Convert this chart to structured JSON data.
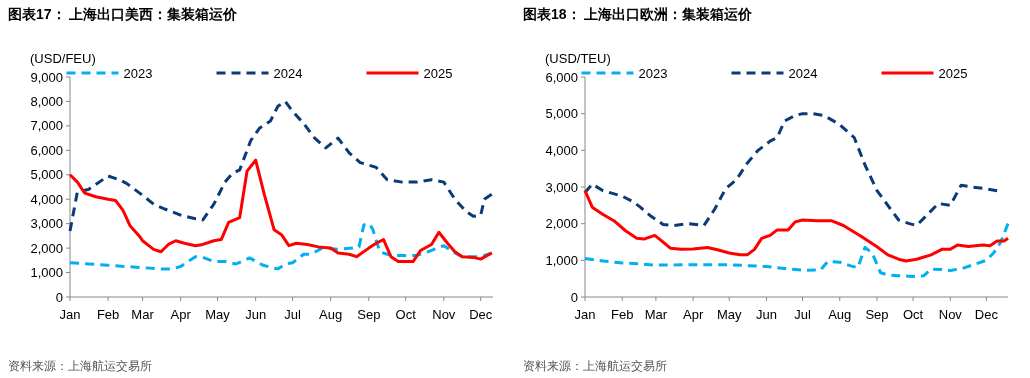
{
  "chart_data": [
    {
      "type": "line",
      "title": "图表17： 上海出口美西：集装箱运价",
      "ylabel": "(USD/FEU)",
      "annotations": [
        "资料来源：上海航运交易所"
      ],
      "xlim": [
        "--01-01",
        "--12-11"
      ],
      "xticks": [
        {
          "value": "--01-01",
          "label": "Jan"
        },
        {
          "value": "--02-01",
          "label": "Feb"
        },
        {
          "value": "--03-01",
          "label": "Mar"
        },
        {
          "value": "--04-01",
          "label": "Apr"
        },
        {
          "value": "--05-01",
          "label": "May"
        },
        {
          "value": "--06-01",
          "label": "Jun"
        },
        {
          "value": "--07-01",
          "label": "Jul"
        },
        {
          "value": "--08-01",
          "label": "Aug"
        },
        {
          "value": "--09-01",
          "label": "Sep"
        },
        {
          "value": "--10-01",
          "label": "Oct"
        },
        {
          "value": "--11-01",
          "label": "Nov"
        },
        {
          "value": "--12-01",
          "label": "Dec"
        }
      ],
      "ylim": [
        0,
        9000
      ],
      "yticks": [
        {
          "value": 0,
          "label": "0"
        },
        {
          "value": 1000,
          "label": "1,000"
        },
        {
          "value": 2000,
          "label": "2,000"
        },
        {
          "value": 3000,
          "label": "3,000"
        },
        {
          "value": 4000,
          "label": "4,000"
        },
        {
          "value": 5000,
          "label": "5,000"
        },
        {
          "value": 6000,
          "label": "6,000"
        },
        {
          "value": 7000,
          "label": "7,000"
        },
        {
          "value": 8000,
          "label": "8,000"
        },
        {
          "value": 9000,
          "label": "9,000"
        }
      ],
      "legend": "top",
      "grid": false,
      "marker": "none",
      "series": [
        {
          "name": "2023",
          "color": "#00b0f0",
          "line_style": "dashed",
          "x": [
            "--01-01",
            "--02-01",
            "--03-01",
            "--03-16",
            "--03-25",
            "--04-01",
            "--04-07",
            "--04-13",
            "--04-19",
            "--04-28",
            "--05-07",
            "--05-16",
            "--05-27",
            "--06-07",
            "--06-16",
            "--06-19",
            "--06-25",
            "--07-01",
            "--07-10",
            "--07-16",
            "--07-25",
            "--08-07",
            "--08-19",
            "--08-24",
            "--08-28",
            "--09-01",
            "--09-04",
            "--09-10",
            "--09-16",
            "--09-25",
            "--10-10",
            "--10-19",
            "--11-01",
            "--11-10",
            "--11-16",
            "--12-01",
            "--12-10"
          ],
          "values": [
            1400,
            1300,
            1200,
            1150,
            1150,
            1250,
            1450,
            1650,
            1620,
            1450,
            1450,
            1350,
            1600,
            1300,
            1180,
            1150,
            1350,
            1400,
            1750,
            1750,
            2000,
            1950,
            2000,
            2050,
            2950,
            3000,
            2800,
            1850,
            1750,
            1700,
            1700,
            1850,
            2100,
            1800,
            1650,
            1650,
            1800
          ]
        },
        {
          "name": "2024",
          "color": "#0a3a78",
          "line_style": "dashed",
          "x": [
            "--01-01",
            "--01-07",
            "--01-16",
            "--02-01",
            "--02-10",
            "--02-16",
            "--02-28",
            "--03-10",
            "--03-19",
            "--04-01",
            "--04-13",
            "--04-19",
            "--04-28",
            "--05-07",
            "--05-13",
            "--05-19",
            "--05-28",
            "--06-04",
            "--06-13",
            "--06-19",
            "--06-25",
            "--07-01",
            "--07-10",
            "--07-19",
            "--07-28",
            "--08-07",
            "--08-16",
            "--08-25",
            "--09-07",
            "--09-16",
            "--09-28",
            "--10-10",
            "--10-22",
            "--11-01",
            "--11-10",
            "--11-19",
            "--11-25",
            "--12-01",
            "--12-04",
            "--12-10"
          ],
          "values": [
            2700,
            4300,
            4400,
            4950,
            4800,
            4650,
            4200,
            3800,
            3600,
            3350,
            3200,
            3150,
            3800,
            4700,
            5050,
            5200,
            6400,
            6900,
            7200,
            7800,
            8000,
            7600,
            7100,
            6500,
            6100,
            6500,
            5900,
            5500,
            5300,
            4800,
            4700,
            4700,
            4800,
            4700,
            4000,
            3500,
            3300,
            3350,
            4000,
            4200
          ]
        },
        {
          "name": "2025",
          "color": "#ff0000",
          "line_style": "solid",
          "x": [
            "--01-01",
            "--01-07",
            "--01-13",
            "--01-22",
            "--02-01",
            "--02-07",
            "--02-13",
            "--02-19",
            "--02-27",
            "--03-01",
            "--03-10",
            "--03-16",
            "--03-22",
            "--03-28",
            "--04-04",
            "--04-13",
            "--04-19",
            "--04-28",
            "--05-04",
            "--05-10",
            "--05-19",
            "--05-25",
            "--06-01",
            "--06-08",
            "--06-16",
            "--06-22",
            "--06-28",
            "--07-04",
            "--07-13",
            "--07-22",
            "--08-01",
            "--08-07",
            "--08-16",
            "--08-22",
            "--09-01",
            "--09-07",
            "--09-13",
            "--09-19",
            "--09-25",
            "--10-01",
            "--10-07",
            "--10-13",
            "--10-22",
            "--10-28",
            "--11-04",
            "--11-10",
            "--11-16",
            "--11-25",
            "--12-01",
            "--12-10"
          ],
          "values": [
            5000,
            4700,
            4250,
            4100,
            4000,
            3950,
            3550,
            2900,
            2450,
            2300,
            1950,
            1850,
            2150,
            2300,
            2200,
            2100,
            2150,
            2300,
            2350,
            3050,
            3250,
            5150,
            5600,
            4200,
            2750,
            2550,
            2100,
            2200,
            2150,
            2050,
            2000,
            1800,
            1750,
            1650,
            2000,
            2200,
            2350,
            1650,
            1450,
            1450,
            1450,
            1900,
            2150,
            2650,
            2200,
            1850,
            1650,
            1620,
            1550,
            1800
          ]
        }
      ]
    },
    {
      "type": "line",
      "title": "图表18： 上海出口欧洲：集装箱运价",
      "ylabel": "(USD/TEU)",
      "annotations": [
        "资料来源：上海航运交易所"
      ],
      "xlim": [
        "--01-01",
        "--12-19"
      ],
      "xticks": [
        {
          "value": "--01-01",
          "label": "Jan"
        },
        {
          "value": "--02-01",
          "label": "Feb"
        },
        {
          "value": "--03-01",
          "label": "Mar"
        },
        {
          "value": "--04-01",
          "label": "Apr"
        },
        {
          "value": "--05-01",
          "label": "May"
        },
        {
          "value": "--06-01",
          "label": "Jun"
        },
        {
          "value": "--07-01",
          "label": "Jul"
        },
        {
          "value": "--08-01",
          "label": "Aug"
        },
        {
          "value": "--09-01",
          "label": "Sep"
        },
        {
          "value": "--10-01",
          "label": "Oct"
        },
        {
          "value": "--11-01",
          "label": "Nov"
        },
        {
          "value": "--12-01",
          "label": "Dec"
        }
      ],
      "ylim": [
        0,
        6000
      ],
      "yticks": [
        {
          "value": 0,
          "label": "0"
        },
        {
          "value": 1000,
          "label": "1,000"
        },
        {
          "value": 2000,
          "label": "2,000"
        },
        {
          "value": 3000,
          "label": "3,000"
        },
        {
          "value": 4000,
          "label": "4,000"
        },
        {
          "value": 5000,
          "label": "5,000"
        },
        {
          "value": 6000,
          "label": "6,000"
        }
      ],
      "legend": "top",
      "grid": false,
      "marker": "none",
      "series": [
        {
          "name": "2023",
          "color": "#00b0f0",
          "line_style": "dashed",
          "x": [
            "--01-01",
            "--01-16",
            "--02-01",
            "--02-16",
            "--03-01",
            "--04-01",
            "--05-01",
            "--06-01",
            "--06-16",
            "--07-01",
            "--07-16",
            "--07-22",
            "--08-01",
            "--08-10",
            "--08-16",
            "--08-22",
            "--08-28",
            "--09-04",
            "--09-10",
            "--09-19",
            "--10-01",
            "--10-10",
            "--10-16",
            "--10-25",
            "--11-01",
            "--11-13",
            "--11-22",
            "--12-01",
            "--12-07",
            "--12-13",
            "--12-19"
          ],
          "values": [
            1050,
            980,
            930,
            900,
            870,
            880,
            880,
            830,
            780,
            730,
            740,
            970,
            950,
            850,
            800,
            1350,
            1200,
            660,
            600,
            580,
            560,
            580,
            760,
            750,
            720,
            800,
            900,
            1000,
            1200,
            1500,
            2000
          ]
        },
        {
          "name": "2024",
          "color": "#0a3a78",
          "line_style": "dashed",
          "x": [
            "--01-01",
            "--01-07",
            "--01-16",
            "--02-01",
            "--02-10",
            "--02-16",
            "--02-25",
            "--03-07",
            "--03-16",
            "--03-28",
            "--04-10",
            "--04-19",
            "--04-28",
            "--05-07",
            "--05-16",
            "--05-25",
            "--06-04",
            "--06-10",
            "--06-16",
            "--06-25",
            "--07-01",
            "--07-10",
            "--07-19",
            "--08-01",
            "--08-13",
            "--08-22",
            "--09-01",
            "--09-10",
            "--09-19",
            "--09-28",
            "--10-04",
            "--10-13",
            "--10-22",
            "--11-01",
            "--11-10",
            "--11-19",
            "--12-01",
            "--12-10"
          ],
          "values": [
            2850,
            3080,
            2900,
            2750,
            2600,
            2450,
            2200,
            1980,
            1950,
            2000,
            1950,
            2400,
            2950,
            3200,
            3650,
            4000,
            4250,
            4350,
            4800,
            4950,
            5000,
            5000,
            4950,
            4700,
            4350,
            3600,
            2900,
            2500,
            2100,
            2000,
            1950,
            2250,
            2550,
            2500,
            3050,
            3000,
            2950,
            2900
          ]
        },
        {
          "name": "2025",
          "color": "#ff0000",
          "line_style": "solid",
          "x": [
            "--01-01",
            "--01-07",
            "--01-16",
            "--01-25",
            "--02-04",
            "--02-13",
            "--02-19",
            "--02-28",
            "--03-04",
            "--03-13",
            "--03-22",
            "--04-01",
            "--04-13",
            "--04-22",
            "--05-01",
            "--05-10",
            "--05-16",
            "--05-22",
            "--05-28",
            "--06-04",
            "--06-10",
            "--06-19",
            "--06-25",
            "--07-01",
            "--07-13",
            "--07-25",
            "--08-04",
            "--08-19",
            "--09-01",
            "--09-10",
            "--09-19",
            "--09-25",
            "--10-04",
            "--10-16",
            "--10-25",
            "--11-01",
            "--11-07",
            "--11-16",
            "--11-28",
            "--12-04",
            "--12-10",
            "--12-16",
            "--12-19"
          ],
          "values": [
            2900,
            2450,
            2250,
            2080,
            1800,
            1600,
            1580,
            1680,
            1580,
            1330,
            1300,
            1310,
            1350,
            1280,
            1200,
            1150,
            1150,
            1300,
            1600,
            1680,
            1830,
            1830,
            2050,
            2100,
            2080,
            2080,
            1950,
            1650,
            1370,
            1150,
            1030,
            980,
            1030,
            1150,
            1300,
            1300,
            1420,
            1380,
            1420,
            1400,
            1530,
            1530,
            1600
          ]
        }
      ]
    }
  ]
}
